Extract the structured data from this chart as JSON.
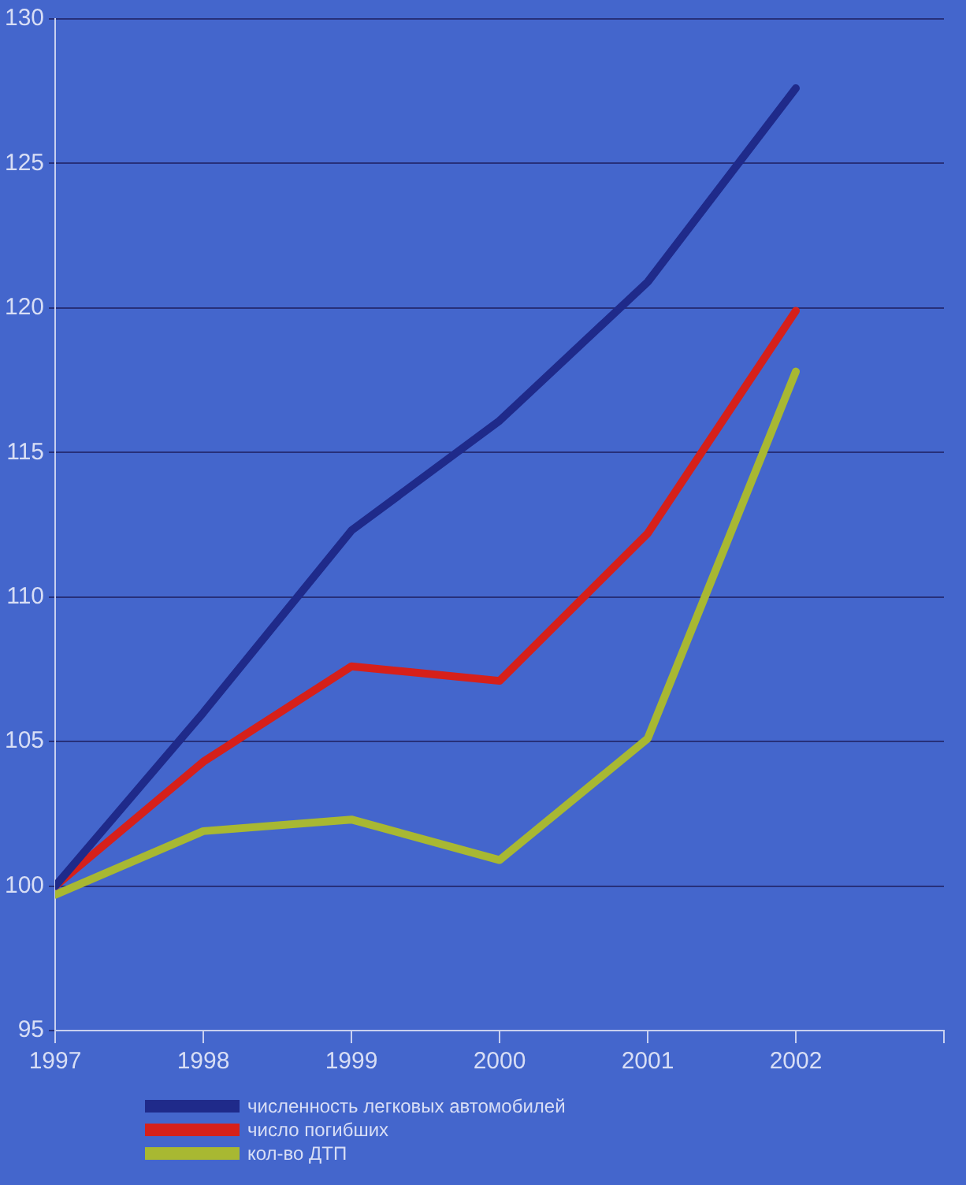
{
  "chart_data": {
    "type": "line",
    "x": [
      1997,
      1998,
      1999,
      2000,
      2001,
      2002
    ],
    "xlim": [
      1997,
      2003
    ],
    "xticks": [
      1997,
      1998,
      1999,
      2000,
      2001,
      2002,
      {
        "value": 2003,
        "label": null
      }
    ],
    "ylim": [
      95,
      130
    ],
    "yticks": [
      95,
      100,
      105,
      110,
      115,
      120,
      125,
      130
    ],
    "grid": "y",
    "legend": "bottom",
    "marker": "none",
    "line_style": "solid",
    "series": [
      {
        "name": "численность легковых автомобилей",
        "color": "#1f2a8a",
        "values": [
          100,
          106,
          112.3,
          116.1,
          120.9,
          127.6
        ]
      },
      {
        "name": "число погибших",
        "color": "#d6201a",
        "values": [
          100,
          104.3,
          107.6,
          107.1,
          112.2,
          119.9
        ]
      },
      {
        "name": "кол-во ДТП",
        "color": "#a8b832",
        "values": [
          99.7,
          101.9,
          102.3,
          100.9,
          105.1,
          117.8
        ]
      }
    ]
  }
}
